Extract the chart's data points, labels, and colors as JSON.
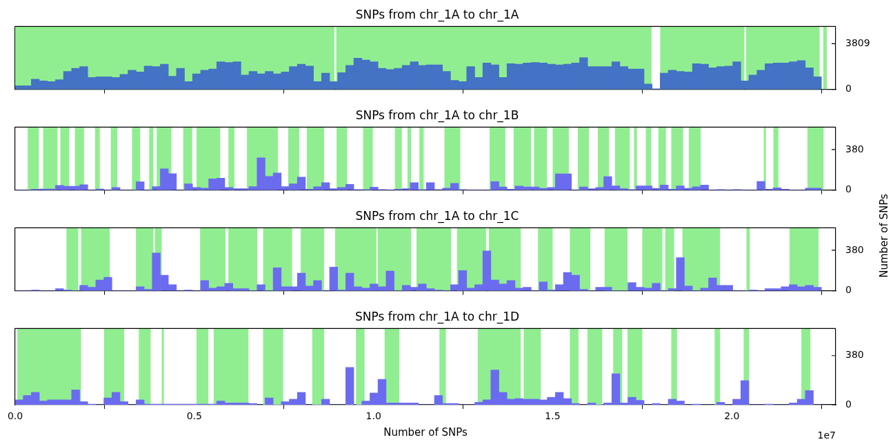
{
  "chart_data": [
    {
      "type": "histogram",
      "title": "SNPs from chr_1A to chr_1A",
      "tick_labels": "y",
      "xlim": [
        0,
        2.29
      ],
      "xticks": [
        0,
        0.5,
        1,
        1.5,
        2
      ],
      "y2lim": [
        0,
        5250
      ],
      "y2ticks": [
        0,
        3809
      ],
      "bins": [
        0,
        0.0225,
        0.045,
        0.0675,
        0.09,
        0.1125,
        0.135,
        0.1575,
        0.18,
        0.2025,
        0.225,
        0.2475,
        0.27,
        0.2925,
        0.315,
        0.3375,
        0.36,
        0.3825,
        0.405,
        0.4275,
        0.45,
        0.4725,
        0.495,
        0.5175,
        0.54,
        0.5625,
        0.585,
        0.6075,
        0.63,
        0.6525,
        0.675,
        0.6975,
        0.72,
        0.7425,
        0.765,
        0.7875,
        0.81,
        0.8325,
        0.855,
        0.8775,
        0.9,
        0.9225,
        0.945,
        0.9675,
        0.99,
        1.0125,
        1.035,
        1.0575,
        1.08,
        1.1025,
        1.125,
        1.1475,
        1.17,
        1.1925,
        1.215,
        1.2375,
        1.26,
        1.2825,
        1.305,
        1.3275,
        1.35,
        1.3725,
        1.395,
        1.4175,
        1.44,
        1.4625,
        1.485,
        1.5075,
        1.53,
        1.5525,
        1.575,
        1.5975,
        1.62,
        1.6425,
        1.665,
        1.6875,
        1.71,
        1.7325,
        1.755,
        1.7775,
        1.8,
        1.8225,
        1.845,
        1.8675,
        1.89,
        1.9125,
        1.935,
        1.9575,
        1.98,
        2.0025,
        2.025,
        2.0475,
        2.07,
        2.0925,
        2.115,
        2.1375,
        2.16,
        2.1825,
        2.205,
        2.2275,
        2.25
      ],
      "series": [
        {
          "color": "#4472c4",
          "axis": "y2",
          "values": [
            300,
            300,
            850,
            700,
            650,
            800,
            1500,
            1750,
            1900,
            1000,
            1050,
            1050,
            1000,
            1250,
            1600,
            1450,
            1950,
            1900,
            2100,
            1100,
            1750,
            650,
            1300,
            1600,
            1700,
            2300,
            2250,
            2300,
            1200,
            1500,
            1300,
            1500,
            1300,
            1450,
            1900,
            2100,
            1950,
            650,
            1350,
            650,
            1400,
            2000,
            2600,
            2450,
            2300,
            1750,
            1650,
            1750,
            2000,
            2300,
            2000,
            2050,
            2050,
            1500,
            750,
            650,
            1900,
            1000,
            2200,
            2050,
            1000,
            2150,
            2100,
            2200,
            2250,
            2200,
            2100,
            2050,
            2100,
            2200,
            2650,
            1900,
            1900,
            1900,
            2300,
            1900,
            1700,
            1700,
            450,
            50,
            1350,
            1600,
            1500,
            1450,
            2150,
            2100,
            1800,
            1900,
            1950,
            2300,
            700,
            1200,
            1600,
            2150,
            2200,
            2200,
            2300,
            2400,
            1800,
            1050
          ]
        }
      ],
      "bands": [
        {
          "axis": "x",
          "from": 0,
          "to": 0.891,
          "color": "#90ee90"
        },
        {
          "axis": "x",
          "from": 0.896,
          "to": 1.776,
          "color": "#90ee90"
        },
        {
          "axis": "x",
          "from": 1.8,
          "to": 2.035,
          "color": "#90ee90"
        },
        {
          "axis": "x",
          "from": 2.04,
          "to": 2.245,
          "color": "#90ee90"
        },
        {
          "axis": "x",
          "from": 2.255,
          "to": 2.265,
          "color": "#90ee90"
        }
      ]
    },
    {
      "type": "histogram",
      "title": "SNPs from chr_1A to chr_1B",
      "tick_labels": "y",
      "y2label": "Number of SNPs",
      "xlim": [
        0,
        2.29
      ],
      "xticks": [
        0,
        0.5,
        1,
        1.5,
        2
      ],
      "y2lim": [
        0,
        590
      ],
      "y2ticks": [
        0,
        380
      ],
      "bins": [
        0,
        0.0225,
        0.045,
        0.0675,
        0.09,
        0.1125,
        0.135,
        0.1575,
        0.18,
        0.2025,
        0.225,
        0.2475,
        0.27,
        0.2925,
        0.315,
        0.3375,
        0.36,
        0.3825,
        0.405,
        0.4275,
        0.45,
        0.4725,
        0.495,
        0.5175,
        0.54,
        0.5625,
        0.585,
        0.6075,
        0.63,
        0.6525,
        0.675,
        0.6975,
        0.72,
        0.7425,
        0.765,
        0.7875,
        0.81,
        0.8325,
        0.855,
        0.8775,
        0.9,
        0.9225,
        0.945,
        0.9675,
        0.99,
        1.0125,
        1.035,
        1.0575,
        1.08,
        1.1025,
        1.125,
        1.1475,
        1.17,
        1.1925,
        1.215,
        1.2375,
        1.26,
        1.2825,
        1.305,
        1.3275,
        1.35,
        1.3725,
        1.395,
        1.4175,
        1.44,
        1.4625,
        1.485,
        1.5075,
        1.53,
        1.5525,
        1.575,
        1.5975,
        1.62,
        1.6425,
        1.665,
        1.6875,
        1.71,
        1.7325,
        1.755,
        1.7775,
        1.8,
        1.8225,
        1.845,
        1.8675,
        1.89,
        1.9125,
        1.935,
        1.9575,
        1.98,
        2.0025,
        2.025,
        2.0475,
        2.07,
        2.0925,
        2.115,
        2.1375,
        2.16,
        2.1825,
        2.205,
        2.2275,
        2.25
      ],
      "series": [
        {
          "color": "#6b6bf0",
          "axis": "y2",
          "values": [
            0,
            0,
            8,
            10,
            10,
            43,
            36,
            36,
            51,
            0,
            10,
            0,
            25,
            0,
            0,
            77,
            0,
            33,
            199,
            153,
            0,
            59,
            25,
            18,
            105,
            112,
            25,
            13,
            13,
            33,
            303,
            128,
            161,
            33,
            59,
            122,
            8,
            31,
            69,
            13,
            25,
            54,
            5,
            5,
            28,
            5,
            0,
            8,
            13,
            69,
            5,
            69,
            5,
            18,
            63,
            5,
            0,
            0,
            0,
            79,
            29,
            8,
            37,
            29,
            29,
            16,
            24,
            152,
            152,
            0,
            29,
            13,
            24,
            126,
            39,
            13,
            5,
            39,
            39,
            16,
            47,
            8,
            39,
            16,
            31,
            47,
            0,
            5,
            0,
            5,
            0,
            0,
            81,
            8,
            21,
            8,
            0,
            0,
            18,
            18
          ]
        }
      ],
      "bands": [
        {
          "axis": "x",
          "from": 0.035,
          "to": 0.066,
          "color": "#90ee90"
        },
        {
          "axis": "x",
          "from": 0.078,
          "to": 0.118,
          "color": "#90ee90"
        },
        {
          "axis": "x",
          "from": 0.126,
          "to": 0.151,
          "color": "#90ee90"
        },
        {
          "axis": "x",
          "from": 0.167,
          "to": 0.192,
          "color": "#90ee90"
        },
        {
          "axis": "x",
          "from": 0.223,
          "to": 0.236,
          "color": "#90ee90"
        },
        {
          "axis": "x",
          "from": 0.267,
          "to": 0.285,
          "color": "#90ee90"
        },
        {
          "axis": "x",
          "from": 0.326,
          "to": 0.349,
          "color": "#90ee90"
        },
        {
          "axis": "x",
          "from": 0.374,
          "to": 0.386,
          "color": "#90ee90"
        },
        {
          "axis": "x",
          "from": 0.395,
          "to": 0.436,
          "color": "#90ee90"
        },
        {
          "axis": "x",
          "from": 0.469,
          "to": 0.494,
          "color": "#90ee90"
        },
        {
          "axis": "x",
          "from": 0.506,
          "to": 0.572,
          "color": "#90ee90"
        },
        {
          "axis": "x",
          "from": 0.595,
          "to": 0.612,
          "color": "#90ee90"
        },
        {
          "axis": "x",
          "from": 0.647,
          "to": 0.733,
          "color": "#90ee90"
        },
        {
          "axis": "x",
          "from": 0.762,
          "to": 0.793,
          "color": "#90ee90"
        },
        {
          "axis": "x",
          "from": 0.814,
          "to": 0.862,
          "color": "#90ee90"
        },
        {
          "axis": "x",
          "from": 0.897,
          "to": 0.926,
          "color": "#90ee90"
        },
        {
          "axis": "x",
          "from": 0.971,
          "to": 0.998,
          "color": "#90ee90"
        },
        {
          "axis": "x",
          "from": 1.06,
          "to": 1.079,
          "color": "#90ee90"
        },
        {
          "axis": "x",
          "from": 1.095,
          "to": 1.105,
          "color": "#90ee90"
        },
        {
          "axis": "x",
          "from": 1.128,
          "to": 1.14,
          "color": "#90ee90"
        },
        {
          "axis": "x",
          "from": 1.198,
          "to": 1.242,
          "color": "#90ee90"
        },
        {
          "axis": "x",
          "from": 1.324,
          "to": 1.368,
          "color": "#90ee90"
        },
        {
          "axis": "x",
          "from": 1.391,
          "to": 1.44,
          "color": "#90ee90"
        },
        {
          "axis": "x",
          "from": 1.448,
          "to": 1.484,
          "color": "#90ee90"
        },
        {
          "axis": "x",
          "from": 1.5,
          "to": 1.545,
          "color": "#90ee90"
        },
        {
          "axis": "x",
          "from": 1.57,
          "to": 1.601,
          "color": "#90ee90"
        },
        {
          "axis": "x",
          "from": 1.626,
          "to": 1.657,
          "color": "#90ee90"
        },
        {
          "axis": "x",
          "from": 1.674,
          "to": 1.715,
          "color": "#90ee90"
        },
        {
          "axis": "x",
          "from": 1.727,
          "to": 1.735,
          "color": "#90ee90"
        },
        {
          "axis": "x",
          "from": 1.76,
          "to": 1.775,
          "color": "#90ee90"
        },
        {
          "axis": "x",
          "from": 1.795,
          "to": 1.816,
          "color": "#90ee90"
        },
        {
          "axis": "x",
          "from": 1.831,
          "to": 1.864,
          "color": "#90ee90"
        },
        {
          "axis": "x",
          "from": 1.88,
          "to": 1.913,
          "color": "#90ee90"
        },
        {
          "axis": "x",
          "from": 2.089,
          "to": 2.095,
          "color": "#90ee90"
        },
        {
          "axis": "x",
          "from": 2.116,
          "to": 2.13,
          "color": "#90ee90"
        },
        {
          "axis": "x",
          "from": 2.211,
          "to": 2.256,
          "color": "#90ee90"
        }
      ]
    },
    {
      "type": "histogram",
      "title": "SNPs from chr_1A to chr_1C",
      "tick_labels": "y",
      "xlim": [
        0,
        2.29
      ],
      "xticks": [
        0,
        0.5,
        1,
        1.5,
        2
      ],
      "y2lim": [
        0,
        590
      ],
      "y2ticks": [
        0,
        380
      ],
      "bins": [
        0,
        0.0225,
        0.045,
        0.0675,
        0.09,
        0.1125,
        0.135,
        0.1575,
        0.18,
        0.2025,
        0.225,
        0.2475,
        0.27,
        0.2925,
        0.315,
        0.3375,
        0.36,
        0.3825,
        0.405,
        0.4275,
        0.45,
        0.4725,
        0.495,
        0.5175,
        0.54,
        0.5625,
        0.585,
        0.6075,
        0.63,
        0.6525,
        0.675,
        0.6975,
        0.72,
        0.7425,
        0.765,
        0.7875,
        0.81,
        0.8325,
        0.855,
        0.8775,
        0.9,
        0.9225,
        0.945,
        0.9675,
        0.99,
        1.0125,
        1.035,
        1.0575,
        1.08,
        1.1025,
        1.125,
        1.1475,
        1.17,
        1.1925,
        1.215,
        1.2375,
        1.26,
        1.2825,
        1.305,
        1.3275,
        1.35,
        1.3725,
        1.395,
        1.4175,
        1.44,
        1.4625,
        1.485,
        1.5075,
        1.53,
        1.5525,
        1.575,
        1.5975,
        1.62,
        1.6425,
        1.665,
        1.6875,
        1.71,
        1.7325,
        1.755,
        1.7775,
        1.8,
        1.8225,
        1.845,
        1.8675,
        1.89,
        1.9125,
        1.935,
        1.9575,
        1.98,
        2.0025,
        2.025,
        2.0475,
        2.07,
        2.0925,
        2.115,
        2.1375,
        2.16,
        2.1825,
        2.205,
        2.2275,
        2.25
      ],
      "series": [
        {
          "color": "#6b6bf0",
          "axis": "y2",
          "values": [
            0,
            0,
            6,
            0,
            0,
            19,
            6,
            0,
            51,
            32,
            101,
            127,
            0,
            0,
            0,
            38,
            13,
            354,
            146,
            57,
            0,
            6,
            0,
            95,
            25,
            38,
            70,
            19,
            19,
            0,
            57,
            0,
            215,
            38,
            38,
            165,
            44,
            95,
            0,
            222,
            6,
            165,
            38,
            25,
            63,
            38,
            184,
            0,
            51,
            32,
            63,
            19,
            6,
            0,
            57,
            190,
            25,
            57,
            373,
            101,
            63,
            95,
            25,
            32,
            0,
            82,
            6,
            57,
            171,
            146,
            13,
            0,
            32,
            32,
            0,
            0,
            76,
            32,
            25,
            70,
            0,
            19,
            310,
            44,
            0,
            25,
            120,
            51,
            51,
            0,
            0,
            6,
            0,
            19,
            19,
            38,
            57,
            38,
            51,
            32
          ]
        }
      ],
      "bands": [
        {
          "axis": "x",
          "from": 0.143,
          "to": 0.176,
          "color": "#90ee90"
        },
        {
          "axis": "x",
          "from": 0.184,
          "to": 0.264,
          "color": "#90ee90"
        },
        {
          "axis": "x",
          "from": 0.337,
          "to": 0.386,
          "color": "#90ee90"
        },
        {
          "axis": "x",
          "from": 0.39,
          "to": 0.409,
          "color": "#90ee90"
        },
        {
          "axis": "x",
          "from": 0.516,
          "to": 0.587,
          "color": "#90ee90"
        },
        {
          "axis": "x",
          "from": 0.595,
          "to": 0.676,
          "color": "#90ee90"
        },
        {
          "axis": "x",
          "from": 0.692,
          "to": 0.773,
          "color": "#90ee90"
        },
        {
          "axis": "x",
          "from": 0.797,
          "to": 0.862,
          "color": "#90ee90"
        },
        {
          "axis": "x",
          "from": 0.893,
          "to": 1.008,
          "color": "#90ee90"
        },
        {
          "axis": "x",
          "from": 1.012,
          "to": 1.105,
          "color": "#90ee90"
        },
        {
          "axis": "x",
          "from": 1.12,
          "to": 1.217,
          "color": "#90ee90"
        },
        {
          "axis": "x",
          "from": 1.233,
          "to": 1.314,
          "color": "#90ee90"
        },
        {
          "axis": "x",
          "from": 1.322,
          "to": 1.411,
          "color": "#90ee90"
        },
        {
          "axis": "x",
          "from": 1.459,
          "to": 1.5,
          "color": "#90ee90"
        },
        {
          "axis": "x",
          "from": 1.548,
          "to": 1.605,
          "color": "#90ee90"
        },
        {
          "axis": "x",
          "from": 1.645,
          "to": 1.709,
          "color": "#90ee90"
        },
        {
          "axis": "x",
          "from": 1.75,
          "to": 1.806,
          "color": "#90ee90"
        },
        {
          "axis": "x",
          "from": 1.814,
          "to": 1.839,
          "color": "#90ee90"
        },
        {
          "axis": "x",
          "from": 1.862,
          "to": 1.967,
          "color": "#90ee90"
        },
        {
          "axis": "x",
          "from": 2.041,
          "to": 2.05,
          "color": "#90ee90"
        },
        {
          "axis": "x",
          "from": 2.161,
          "to": 2.242,
          "color": "#90ee90"
        }
      ]
    },
    {
      "type": "histogram",
      "title": "SNPs from chr_1A to chr_1D",
      "xlabel": "Number of SNPs",
      "annotations": [
        "1e7"
      ],
      "xlim": [
        0,
        2.29
      ],
      "xticks": [
        {
          "value": 0,
          "label": "0.0"
        },
        0.5,
        {
          "value": 1,
          "label": "1.0"
        },
        1.5,
        {
          "value": 2,
          "label": "2.0"
        }
      ],
      "y2lim": [
        0,
        590
      ],
      "y2ticks": [
        0,
        380
      ],
      "bins": [
        0,
        0.0225,
        0.045,
        0.0675,
        0.09,
        0.1125,
        0.135,
        0.1575,
        0.18,
        0.2025,
        0.225,
        0.2475,
        0.27,
        0.2925,
        0.315,
        0.3375,
        0.36,
        0.3825,
        0.405,
        0.4275,
        0.45,
        0.4725,
        0.495,
        0.5175,
        0.54,
        0.5625,
        0.585,
        0.6075,
        0.63,
        0.6525,
        0.675,
        0.6975,
        0.72,
        0.7425,
        0.765,
        0.7875,
        0.81,
        0.8325,
        0.855,
        0.8775,
        0.9,
        0.9225,
        0.945,
        0.9675,
        0.99,
        1.0125,
        1.035,
        1.0575,
        1.08,
        1.1025,
        1.125,
        1.1475,
        1.17,
        1.1925,
        1.215,
        1.2375,
        1.26,
        1.2825,
        1.305,
        1.3275,
        1.35,
        1.3725,
        1.395,
        1.4175,
        1.44,
        1.4625,
        1.485,
        1.5075,
        1.53,
        1.5525,
        1.575,
        1.5975,
        1.62,
        1.6425,
        1.665,
        1.6875,
        1.71,
        1.7325,
        1.755,
        1.7775,
        1.8,
        1.8225,
        1.845,
        1.8675,
        1.89,
        1.9125,
        1.935,
        1.9575,
        1.98,
        2.0025,
        2.025,
        2.0475,
        2.07,
        2.0925,
        2.115,
        2.1375,
        2.16,
        2.1825,
        2.205,
        2.2275,
        2.25
      ],
      "series": [
        {
          "color": "#6b6bf0",
          "axis": "y2",
          "values": [
            38,
            72,
            96,
            29,
            38,
            38,
            38,
            115,
            24,
            5,
            0,
            53,
            96,
            24,
            0,
            38,
            5,
            5,
            5,
            5,
            5,
            5,
            5,
            5,
            5,
            29,
            14,
            14,
            14,
            10,
            0,
            53,
            0,
            24,
            43,
            96,
            0,
            0,
            43,
            0,
            0,
            289,
            0,
            29,
            91,
            197,
            14,
            14,
            14,
            14,
            0,
            0,
            72,
            10,
            10,
            0,
            0,
            19,
            38,
            269,
            96,
            43,
            48,
            43,
            43,
            38,
            58,
            96,
            48,
            10,
            0,
            14,
            0,
            14,
            240,
            14,
            58,
            34,
            0,
            10,
            0,
            43,
            29,
            0,
            5,
            0,
            0,
            19,
            0,
            43,
            187,
            0,
            0,
            5,
            0,
            0,
            14,
            43,
            110,
            0
          ]
        }
      ],
      "bands": [
        {
          "axis": "x",
          "from": 0.006,
          "to": 0.184,
          "color": "#90ee90"
        },
        {
          "axis": "x",
          "from": 0.248,
          "to": 0.304,
          "color": "#90ee90"
        },
        {
          "axis": "x",
          "from": 0.345,
          "to": 0.378,
          "color": "#90ee90"
        },
        {
          "axis": "x",
          "from": 0.409,
          "to": 0.415,
          "color": "#90ee90"
        },
        {
          "axis": "x",
          "from": 0.506,
          "to": 0.539,
          "color": "#90ee90"
        },
        {
          "axis": "x",
          "from": 0.554,
          "to": 0.651,
          "color": "#90ee90"
        },
        {
          "axis": "x",
          "from": 0.692,
          "to": 0.748,
          "color": "#90ee90"
        },
        {
          "axis": "x",
          "from": 0.829,
          "to": 0.862,
          "color": "#90ee90"
        },
        {
          "axis": "x",
          "from": 0.951,
          "to": 0.975,
          "color": "#90ee90"
        },
        {
          "axis": "x",
          "from": 1.031,
          "to": 1.072,
          "color": "#90ee90"
        },
        {
          "axis": "x",
          "from": 1.184,
          "to": 1.202,
          "color": "#90ee90"
        },
        {
          "axis": "x",
          "from": 1.291,
          "to": 1.411,
          "color": "#90ee90"
        },
        {
          "axis": "x",
          "from": 1.419,
          "to": 1.467,
          "color": "#90ee90"
        },
        {
          "axis": "x",
          "from": 1.548,
          "to": 1.572,
          "color": "#90ee90"
        },
        {
          "axis": "x",
          "from": 1.597,
          "to": 1.638,
          "color": "#90ee90"
        },
        {
          "axis": "x",
          "from": 1.669,
          "to": 1.694,
          "color": "#90ee90"
        },
        {
          "axis": "x",
          "from": 1.709,
          "to": 1.75,
          "color": "#90ee90"
        },
        {
          "axis": "x",
          "from": 1.831,
          "to": 1.847,
          "color": "#90ee90"
        },
        {
          "axis": "x",
          "from": 1.952,
          "to": 1.967,
          "color": "#90ee90"
        },
        {
          "axis": "x",
          "from": 2.033,
          "to": 2.048,
          "color": "#90ee90"
        },
        {
          "axis": "x",
          "from": 2.194,
          "to": 2.219,
          "color": "#90ee90"
        }
      ]
    }
  ]
}
